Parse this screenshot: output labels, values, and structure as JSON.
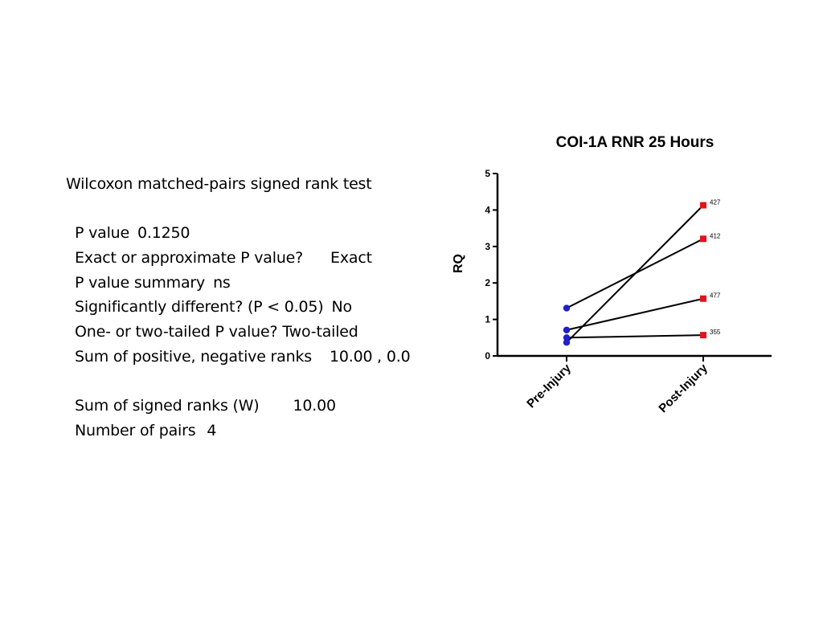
{
  "stats": {
    "heading": "Wilcoxon matched-pairs signed rank test",
    "rows_a": [
      {
        "label": "P value",
        "value": "0.1250"
      },
      {
        "label": "Exact or approximate P value?",
        "value": "Exact"
      },
      {
        "label": "P value summary",
        "value": "ns"
      },
      {
        "label": "Significantly different? (P < 0.05)",
        "value": "No"
      },
      {
        "label": "One- or two-tailed P value?",
        "value": "Two-tailed"
      },
      {
        "label": "Sum of positive, negative ranks",
        "value": "10.00 , 0.0"
      }
    ],
    "rows_b": [
      {
        "label": "Sum of signed ranks (W)",
        "value": "10.00"
      },
      {
        "label": "Number of pairs",
        "value": "4"
      }
    ]
  },
  "chart_data": {
    "type": "line",
    "title": "COI-1A RNR 25 Hours",
    "ylabel": "RQ",
    "xlabel": "",
    "categories": [
      "Pre-Injury",
      "Post-Injury"
    ],
    "ylim": [
      0,
      5
    ],
    "yticks": [
      "0",
      "1",
      "2",
      "3",
      "4",
      "5"
    ],
    "grid": false,
    "legend": "none",
    "series": [
      {
        "label": "427",
        "values": [
          0.37,
          4.13
        ]
      },
      {
        "label": "412",
        "values": [
          1.31,
          3.21
        ]
      },
      {
        "label": "477",
        "values": [
          0.71,
          1.57
        ]
      },
      {
        "label": "355",
        "values": [
          0.5,
          0.57
        ]
      }
    ],
    "colors": {
      "pre_marker": "#1f1fcc",
      "post_marker": "#e0141e",
      "line": "#000000"
    }
  }
}
